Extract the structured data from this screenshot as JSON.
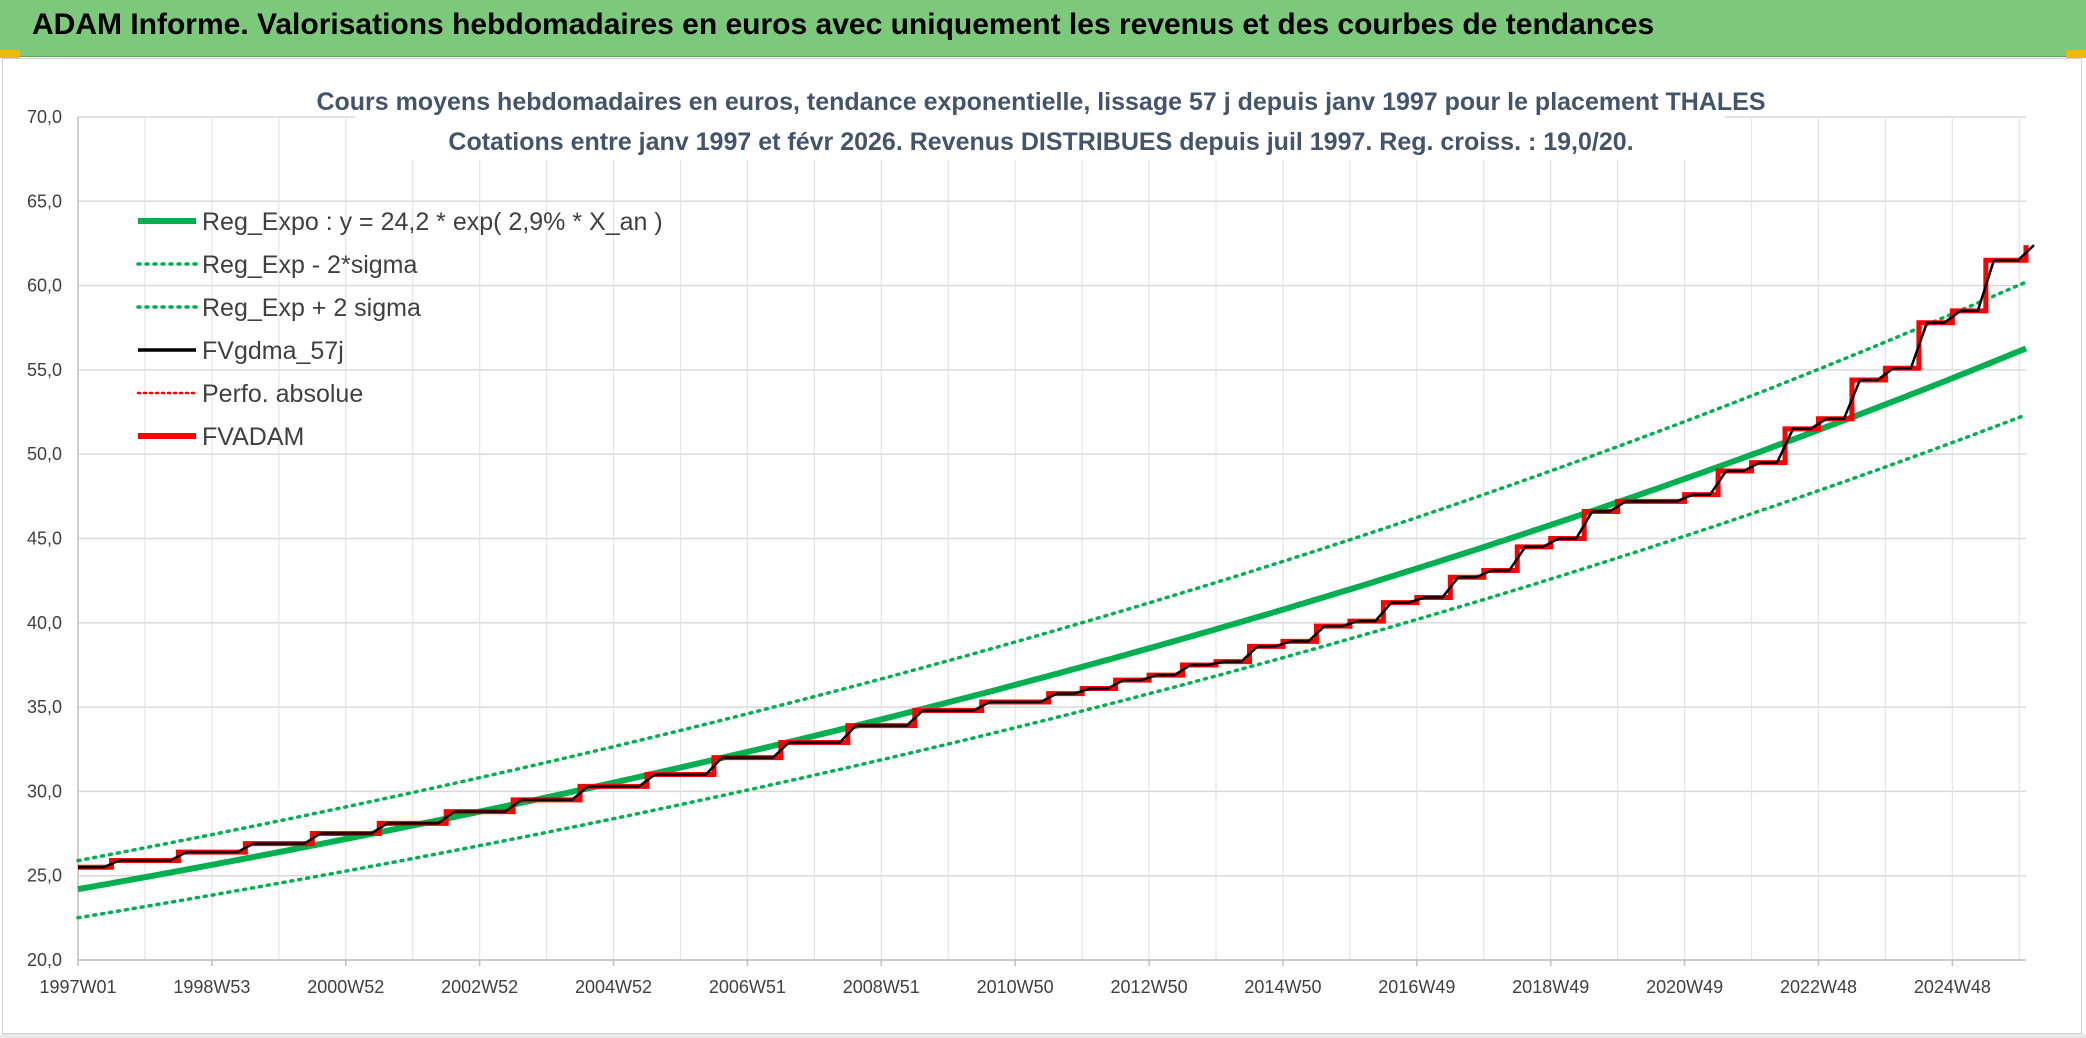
{
  "banner": {
    "title": "ADAM Informe. Valorisations hebdomadaires en euros avec uniquement les revenus et des courbes de tendances"
  },
  "chart_data": {
    "type": "line",
    "title_line1": "Cours moyens hebdomadaires en euros, tendance exponentielle, lissage 57 j depuis janv 1997 pour le placement THALES",
    "title_line2": "Cotations entre janv 1997 et févr 2026. Revenus DISTRIBUES depuis juil 1997. Reg. croiss. : 19,0/20.",
    "xlabel": "",
    "ylabel": "",
    "ylim": [
      20,
      70
    ],
    "xlim": [
      1997.0,
      2026.1
    ],
    "y_ticks": [
      "20,0",
      "25,0",
      "30,0",
      "35,0",
      "40,0",
      "45,0",
      "50,0",
      "55,0",
      "60,0",
      "65,0",
      "70,0"
    ],
    "x_tick_labels": [
      {
        "label": "1997W01",
        "x": 1997.0
      },
      {
        "label": "1998W53",
        "x": 1999.0
      },
      {
        "label": "2000W52",
        "x": 2001.0
      },
      {
        "label": "2002W52",
        "x": 2003.0
      },
      {
        "label": "2004W52",
        "x": 2005.0
      },
      {
        "label": "2006W51",
        "x": 2007.0
      },
      {
        "label": "2008W51",
        "x": 2009.0
      },
      {
        "label": "2010W50",
        "x": 2011.0
      },
      {
        "label": "2012W50",
        "x": 2013.0
      },
      {
        "label": "2014W50",
        "x": 2015.0
      },
      {
        "label": "2016W49",
        "x": 2017.0
      },
      {
        "label": "2018W49",
        "x": 2019.0
      },
      {
        "label": "2020W49",
        "x": 2021.0
      },
      {
        "label": "2022W48",
        "x": 2023.0
      },
      {
        "label": "2024W48",
        "x": 2025.0
      }
    ],
    "grid": true,
    "legend_position": "top-left",
    "regression": {
      "a": 24.2,
      "rate": 0.029,
      "band_factor": 0.07
    },
    "series": [
      {
        "name": "Reg_Expo : y = 24,2 * exp( 2,9% *  X_an )",
        "color": "#00b050",
        "style": "solid-thick"
      },
      {
        "name": "Reg_Exp - 2*sigma",
        "color": "#00b050",
        "style": "dotted"
      },
      {
        "name": "Reg_Exp + 2 sigma",
        "color": "#00b050",
        "style": "dotted"
      },
      {
        "name": "FVgdma_57j",
        "color": "#000000",
        "style": "solid"
      },
      {
        "name": "Perfo. absolue",
        "color": "#ff0000",
        "style": "dotted-thin"
      },
      {
        "name": "FVADAM",
        "color": "#ff0000",
        "style": "solid-thick",
        "steps": [
          {
            "x": 1997.0,
            "y": 25.5
          },
          {
            "x": 1997.5,
            "y": 25.9
          },
          {
            "x": 1998.5,
            "y": 26.4
          },
          {
            "x": 1999.5,
            "y": 26.9
          },
          {
            "x": 2000.5,
            "y": 27.5
          },
          {
            "x": 2001.5,
            "y": 28.1
          },
          {
            "x": 2002.5,
            "y": 28.8
          },
          {
            "x": 2003.5,
            "y": 29.5
          },
          {
            "x": 2004.5,
            "y": 30.3
          },
          {
            "x": 2005.5,
            "y": 31.0
          },
          {
            "x": 2006.5,
            "y": 32.0
          },
          {
            "x": 2007.5,
            "y": 32.9
          },
          {
            "x": 2008.5,
            "y": 33.9
          },
          {
            "x": 2009.5,
            "y": 34.8
          },
          {
            "x": 2010.5,
            "y": 35.3
          },
          {
            "x": 2011.5,
            "y": 35.8
          },
          {
            "x": 2012.0,
            "y": 36.1
          },
          {
            "x": 2012.5,
            "y": 36.6
          },
          {
            "x": 2013.0,
            "y": 36.9
          },
          {
            "x": 2013.5,
            "y": 37.5
          },
          {
            "x": 2014.0,
            "y": 37.7
          },
          {
            "x": 2014.5,
            "y": 38.6
          },
          {
            "x": 2015.0,
            "y": 38.9
          },
          {
            "x": 2015.5,
            "y": 39.8
          },
          {
            "x": 2016.0,
            "y": 40.1
          },
          {
            "x": 2016.5,
            "y": 41.2
          },
          {
            "x": 2017.0,
            "y": 41.5
          },
          {
            "x": 2017.5,
            "y": 42.7
          },
          {
            "x": 2018.0,
            "y": 43.1
          },
          {
            "x": 2018.5,
            "y": 44.5
          },
          {
            "x": 2019.0,
            "y": 45.0
          },
          {
            "x": 2019.5,
            "y": 46.6
          },
          {
            "x": 2020.0,
            "y": 47.2
          },
          {
            "x": 2021.0,
            "y": 47.6
          },
          {
            "x": 2021.5,
            "y": 49.0
          },
          {
            "x": 2022.0,
            "y": 49.5
          },
          {
            "x": 2022.5,
            "y": 51.5
          },
          {
            "x": 2023.0,
            "y": 52.1
          },
          {
            "x": 2023.5,
            "y": 54.4
          },
          {
            "x": 2024.0,
            "y": 55.1
          },
          {
            "x": 2024.5,
            "y": 57.8
          },
          {
            "x": 2025.0,
            "y": 58.5
          },
          {
            "x": 2025.5,
            "y": 61.5
          },
          {
            "x": 2026.1,
            "y": 62.4
          }
        ]
      }
    ]
  }
}
